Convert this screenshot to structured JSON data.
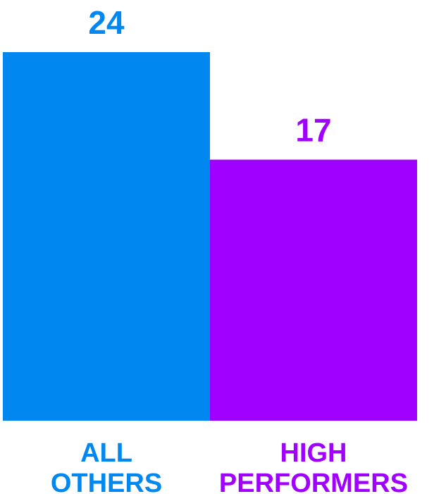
{
  "chart_data": {
    "type": "bar",
    "title": "",
    "xlabel": "",
    "ylabel": "",
    "categories": [
      {
        "lines": [
          "ALL",
          "OTHERS"
        ]
      },
      {
        "lines": [
          "HIGH",
          "PERFORMERS"
        ]
      }
    ],
    "values": [
      24,
      17
    ],
    "data_labels": [
      "24",
      "17"
    ],
    "colors": [
      "#0088f0",
      "#a000ff"
    ],
    "ylim": [
      0,
      24
    ],
    "grid": false
  }
}
